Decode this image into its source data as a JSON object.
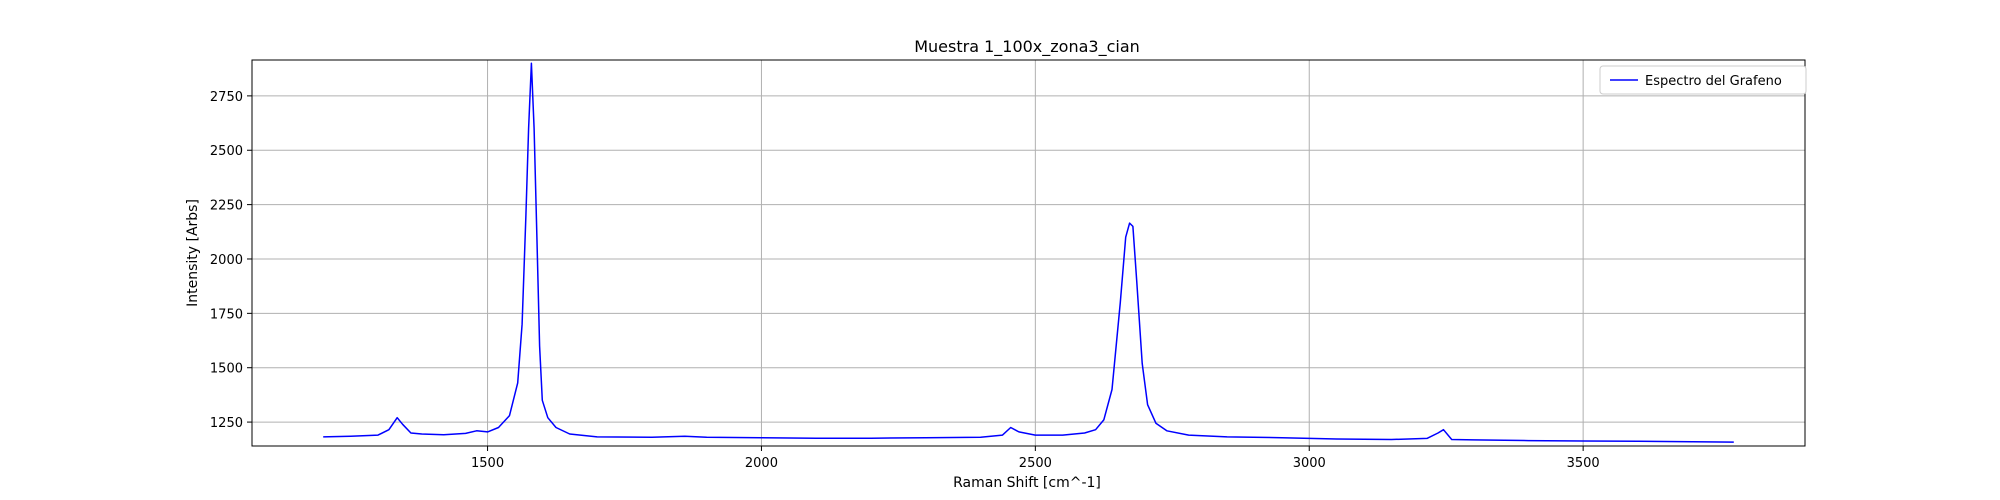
{
  "chart_data": {
    "type": "line",
    "title": "Muestra 1_100x_zona3_cian",
    "xlabel": "Raman Shift [cm^-1]",
    "ylabel": "Intensity [Arbs]",
    "xlim": [
      1070,
      3905
    ],
    "ylim": [
      1140,
      2915
    ],
    "xticks": [
      1500,
      2000,
      2500,
      3000,
      3500
    ],
    "yticks": [
      1250,
      1500,
      1750,
      2000,
      2250,
      2500,
      2750
    ],
    "grid": true,
    "legend_position": "top-right",
    "line_color": "#0000ff",
    "series": [
      {
        "name": "Espectro del Grafeno",
        "x": [
          1200,
          1250,
          1300,
          1320,
          1335,
          1345,
          1360,
          1380,
          1420,
          1460,
          1480,
          1500,
          1520,
          1540,
          1555,
          1563,
          1570,
          1575,
          1580,
          1585,
          1590,
          1595,
          1600,
          1610,
          1625,
          1650,
          1700,
          1800,
          1860,
          1900,
          2000,
          2100,
          2200,
          2300,
          2400,
          2440,
          2455,
          2470,
          2500,
          2550,
          2590,
          2610,
          2625,
          2640,
          2655,
          2665,
          2672,
          2678,
          2685,
          2695,
          2705,
          2720,
          2740,
          2780,
          2850,
          2950,
          3050,
          3150,
          3215,
          3235,
          3245,
          3260,
          3300,
          3400,
          3500,
          3600,
          3700,
          3775
        ],
        "values": [
          1182,
          1185,
          1190,
          1215,
          1270,
          1240,
          1200,
          1195,
          1192,
          1198,
          1210,
          1205,
          1225,
          1280,
          1430,
          1700,
          2200,
          2600,
          2900,
          2600,
          2100,
          1600,
          1350,
          1270,
          1225,
          1195,
          1182,
          1180,
          1185,
          1180,
          1178,
          1176,
          1176,
          1178,
          1180,
          1190,
          1225,
          1205,
          1190,
          1190,
          1200,
          1215,
          1260,
          1400,
          1800,
          2100,
          2165,
          2150,
          1900,
          1520,
          1330,
          1245,
          1210,
          1190,
          1182,
          1178,
          1172,
          1170,
          1175,
          1200,
          1215,
          1170,
          1168,
          1165,
          1163,
          1162,
          1160,
          1158
        ]
      }
    ]
  }
}
